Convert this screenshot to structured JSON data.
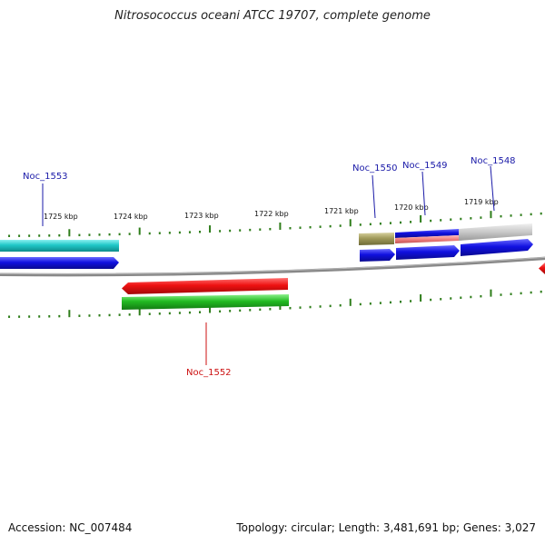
{
  "title": "Nitrosococcus oceani ATCC 19707, complete genome",
  "footer": {
    "accession": "Accession: NC_007484",
    "topology": "Topology: circular; Length: 3,481,691 bp; Genes: 3,027"
  },
  "scale_labels": [
    "1725 kbp",
    "1724 kbp",
    "1723 kbp",
    "1722 kbp",
    "1721 kbp",
    "1720 kbp",
    "1719 kbp"
  ],
  "gene_labels": [
    "Noc_1553",
    "Noc_1550",
    "Noc_1549",
    "Noc_1548",
    "Noc_1552"
  ],
  "colors": {
    "forward_label": "#1a1aa8",
    "reverse_label": "#cc1111",
    "backbone": "#888888",
    "tick": "#2e7d1a",
    "cyan": "#20c8c8",
    "blue": "#1010e0",
    "red": "#ee1111",
    "green": "#22bb22",
    "olive": "#a09a5a",
    "gray": "#c8c8c8"
  }
}
